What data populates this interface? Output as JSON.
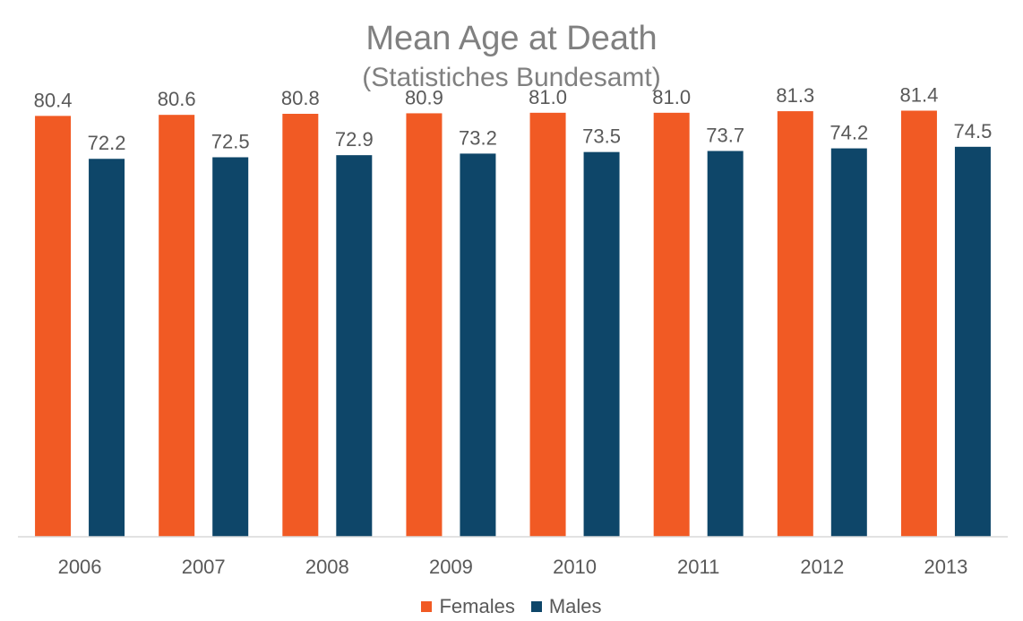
{
  "chart_data": {
    "type": "bar",
    "title": "Mean Age at Death",
    "subtitle": "(Statistiches Bundesamt)",
    "categories": [
      "2006",
      "2007",
      "2008",
      "2009",
      "2010",
      "2011",
      "2012",
      "2013"
    ],
    "series": [
      {
        "name": "Females",
        "color": "#f15a24",
        "values": [
          80.4,
          80.6,
          80.8,
          80.9,
          81.0,
          81.0,
          81.3,
          81.4
        ],
        "labels": [
          "80.4",
          "80.6",
          "80.8",
          "80.9",
          "81.0",
          "81.0",
          "81.3",
          "81.4"
        ]
      },
      {
        "name": "Males",
        "color": "#0e4669",
        "values": [
          72.2,
          72.5,
          72.9,
          73.2,
          73.5,
          73.7,
          74.2,
          74.5
        ],
        "labels": [
          "72.2",
          "72.5",
          "72.9",
          "73.2",
          "73.5",
          "73.7",
          "74.2",
          "74.5"
        ]
      }
    ],
    "xlabel": "",
    "ylabel": "",
    "ylim": [
      0,
      82
    ],
    "grid": false,
    "legend_position": "bottom"
  }
}
